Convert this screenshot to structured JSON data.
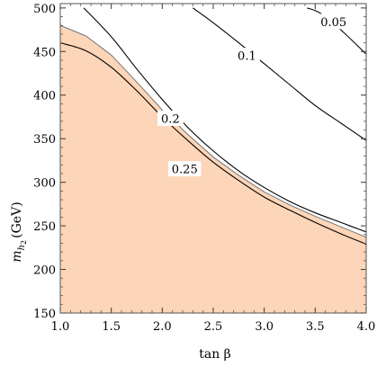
{
  "chart_data": {
    "type": "line",
    "xlabel": "tan β",
    "ylabel": "m_h₂ (GeV)",
    "ylabel_parts": {
      "m": "m",
      "h": "h",
      "sub2": "2",
      "unit": "(GeV)"
    },
    "xlim": [
      1.0,
      4.0
    ],
    "ylim": [
      150,
      505
    ],
    "x_ticks": [
      1.0,
      1.5,
      2.0,
      2.5,
      3.0,
      3.5,
      4.0
    ],
    "x_tick_labels": [
      "1.0",
      "1.5",
      "2.0",
      "2.5",
      "3.0",
      "3.5",
      "4.0"
    ],
    "y_ticks": [
      150,
      200,
      250,
      300,
      350,
      400,
      450,
      500
    ],
    "y_tick_labels": [
      "150",
      "200",
      "250",
      "300",
      "350",
      "400",
      "450",
      "500"
    ],
    "grid": false,
    "colors": {
      "excluded_fill": "#fdd5b8",
      "line": "#000000",
      "excluded_edge": "#777777"
    },
    "excluded_region": {
      "x": [
        1.0,
        1.25,
        1.5,
        1.75,
        2.0,
        2.25,
        2.5,
        2.75,
        3.0,
        3.25,
        3.5,
        3.75,
        4.0
      ],
      "y": [
        480,
        468,
        446,
        415,
        383,
        355,
        329,
        308,
        289,
        274,
        261,
        249,
        237
      ]
    },
    "series": [
      {
        "label": "0.25",
        "label_at": [
          2.22,
          315
        ],
        "x": [
          1.0,
          1.25,
          1.5,
          1.75,
          2.0,
          2.25,
          2.5,
          2.75,
          3.0,
          3.25,
          3.5,
          3.75,
          4.0
        ],
        "y": [
          460,
          451,
          432,
          405,
          375,
          348,
          323,
          302,
          283,
          268,
          254,
          241,
          229
        ]
      },
      {
        "label": "0.2",
        "label_at": [
          2.08,
          373
        ],
        "x": [
          1.23,
          1.5,
          1.75,
          2.0,
          2.25,
          2.5,
          2.75,
          3.0,
          3.25,
          3.5,
          3.75,
          4.0
        ],
        "y": [
          500,
          467,
          430,
          395,
          363,
          336,
          313,
          294,
          278,
          265,
          254,
          243
        ]
      },
      {
        "label": "0.1",
        "label_at": [
          2.83,
          445
        ],
        "x": [
          2.3,
          2.5,
          2.75,
          3.0,
          3.25,
          3.5,
          3.75,
          4.0
        ],
        "y": [
          500,
          483,
          460,
          436,
          412,
          388,
          368,
          348
        ]
      },
      {
        "label": "0.05",
        "label_at": [
          3.68,
          484
        ],
        "x": [
          3.42,
          3.55,
          3.75,
          4.0
        ],
        "y": [
          500,
          494,
          475,
          447
        ]
      }
    ]
  }
}
